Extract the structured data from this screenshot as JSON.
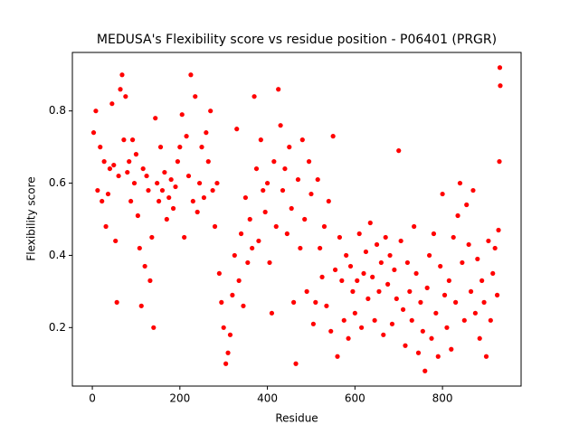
{
  "chart_data": {
    "type": "scatter",
    "title": "MEDUSA's Flexibility score vs residue position - P06401 (PRGR)",
    "x_label": "Residue",
    "y_label": "Flexibility score",
    "color": "#ff0000",
    "xlim": [
      -45.6,
      979.6
    ],
    "ylim": [
      0.038,
      0.962
    ],
    "xticks": [
      0,
      200,
      400,
      600,
      800
    ],
    "yticks": [
      0.2,
      0.4,
      0.6,
      0.8
    ],
    "x": [
      3,
      8,
      12,
      18,
      22,
      27,
      31,
      36,
      40,
      45,
      49,
      53,
      56,
      60,
      64,
      68,
      72,
      76,
      80,
      84,
      88,
      92,
      96,
      100,
      104,
      108,
      112,
      116,
      120,
      124,
      128,
      132,
      136,
      140,
      144,
      148,
      152,
      156,
      160,
      165,
      170,
      175,
      180,
      185,
      190,
      195,
      200,
      205,
      210,
      215,
      220,
      225,
      230,
      235,
      240,
      245,
      250,
      255,
      260,
      265,
      270,
      275,
      280,
      285,
      290,
      295,
      300,
      305,
      310,
      315,
      320,
      325,
      330,
      335,
      340,
      345,
      350,
      355,
      360,
      365,
      370,
      375,
      380,
      385,
      390,
      395,
      400,
      405,
      410,
      415,
      420,
      425,
      430,
      435,
      440,
      445,
      450,
      455,
      460,
      465,
      470,
      475,
      480,
      485,
      490,
      495,
      500,
      505,
      510,
      515,
      520,
      525,
      530,
      535,
      540,
      545,
      550,
      555,
      560,
      565,
      570,
      575,
      580,
      585,
      590,
      595,
      600,
      605,
      610,
      615,
      620,
      625,
      630,
      635,
      640,
      645,
      650,
      655,
      660,
      665,
      670,
      675,
      680,
      685,
      690,
      695,
      700,
      705,
      710,
      715,
      720,
      725,
      730,
      735,
      740,
      745,
      750,
      755,
      760,
      765,
      770,
      775,
      780,
      785,
      790,
      795,
      800,
      805,
      810,
      815,
      820,
      825,
      830,
      835,
      840,
      845,
      850,
      855,
      860,
      865,
      870,
      875,
      880,
      885,
      890,
      895,
      900,
      905,
      910,
      915,
      920,
      925,
      928,
      930,
      931,
      932
    ],
    "y": [
      0.74,
      0.8,
      0.58,
      0.7,
      0.55,
      0.66,
      0.48,
      0.57,
      0.64,
      0.82,
      0.65,
      0.44,
      0.27,
      0.62,
      0.86,
      0.9,
      0.72,
      0.84,
      0.63,
      0.66,
      0.55,
      0.72,
      0.6,
      0.68,
      0.51,
      0.42,
      0.26,
      0.64,
      0.37,
      0.62,
      0.58,
      0.33,
      0.45,
      0.2,
      0.78,
      0.6,
      0.55,
      0.7,
      0.58,
      0.63,
      0.5,
      0.56,
      0.61,
      0.53,
      0.59,
      0.66,
      0.7,
      0.79,
      0.45,
      0.73,
      0.62,
      0.9,
      0.55,
      0.84,
      0.52,
      0.6,
      0.7,
      0.56,
      0.74,
      0.66,
      0.8,
      0.58,
      0.48,
      0.6,
      0.35,
      0.27,
      0.2,
      0.1,
      0.13,
      0.18,
      0.29,
      0.4,
      0.75,
      0.33,
      0.46,
      0.26,
      0.56,
      0.38,
      0.5,
      0.42,
      0.84,
      0.64,
      0.44,
      0.72,
      0.58,
      0.52,
      0.6,
      0.38,
      0.24,
      0.66,
      0.48,
      0.86,
      0.76,
      0.58,
      0.64,
      0.46,
      0.7,
      0.53,
      0.27,
      0.1,
      0.61,
      0.42,
      0.72,
      0.5,
      0.3,
      0.66,
      0.57,
      0.21,
      0.27,
      0.61,
      0.42,
      0.34,
      0.48,
      0.26,
      0.55,
      0.19,
      0.73,
      0.36,
      0.12,
      0.45,
      0.33,
      0.22,
      0.4,
      0.17,
      0.37,
      0.3,
      0.24,
      0.33,
      0.46,
      0.2,
      0.35,
      0.41,
      0.28,
      0.49,
      0.34,
      0.22,
      0.43,
      0.3,
      0.38,
      0.18,
      0.45,
      0.32,
      0.4,
      0.21,
      0.36,
      0.28,
      0.69,
      0.44,
      0.25,
      0.15,
      0.38,
      0.3,
      0.22,
      0.48,
      0.35,
      0.13,
      0.27,
      0.19,
      0.08,
      0.31,
      0.4,
      0.17,
      0.46,
      0.24,
      0.12,
      0.37,
      0.57,
      0.29,
      0.2,
      0.33,
      0.14,
      0.45,
      0.27,
      0.51,
      0.6,
      0.38,
      0.22,
      0.54,
      0.43,
      0.3,
      0.58,
      0.24,
      0.39,
      0.17,
      0.33,
      0.27,
      0.12,
      0.44,
      0.22,
      0.35,
      0.42,
      0.29,
      0.47,
      0.66,
      0.92,
      0.87
    ]
  }
}
